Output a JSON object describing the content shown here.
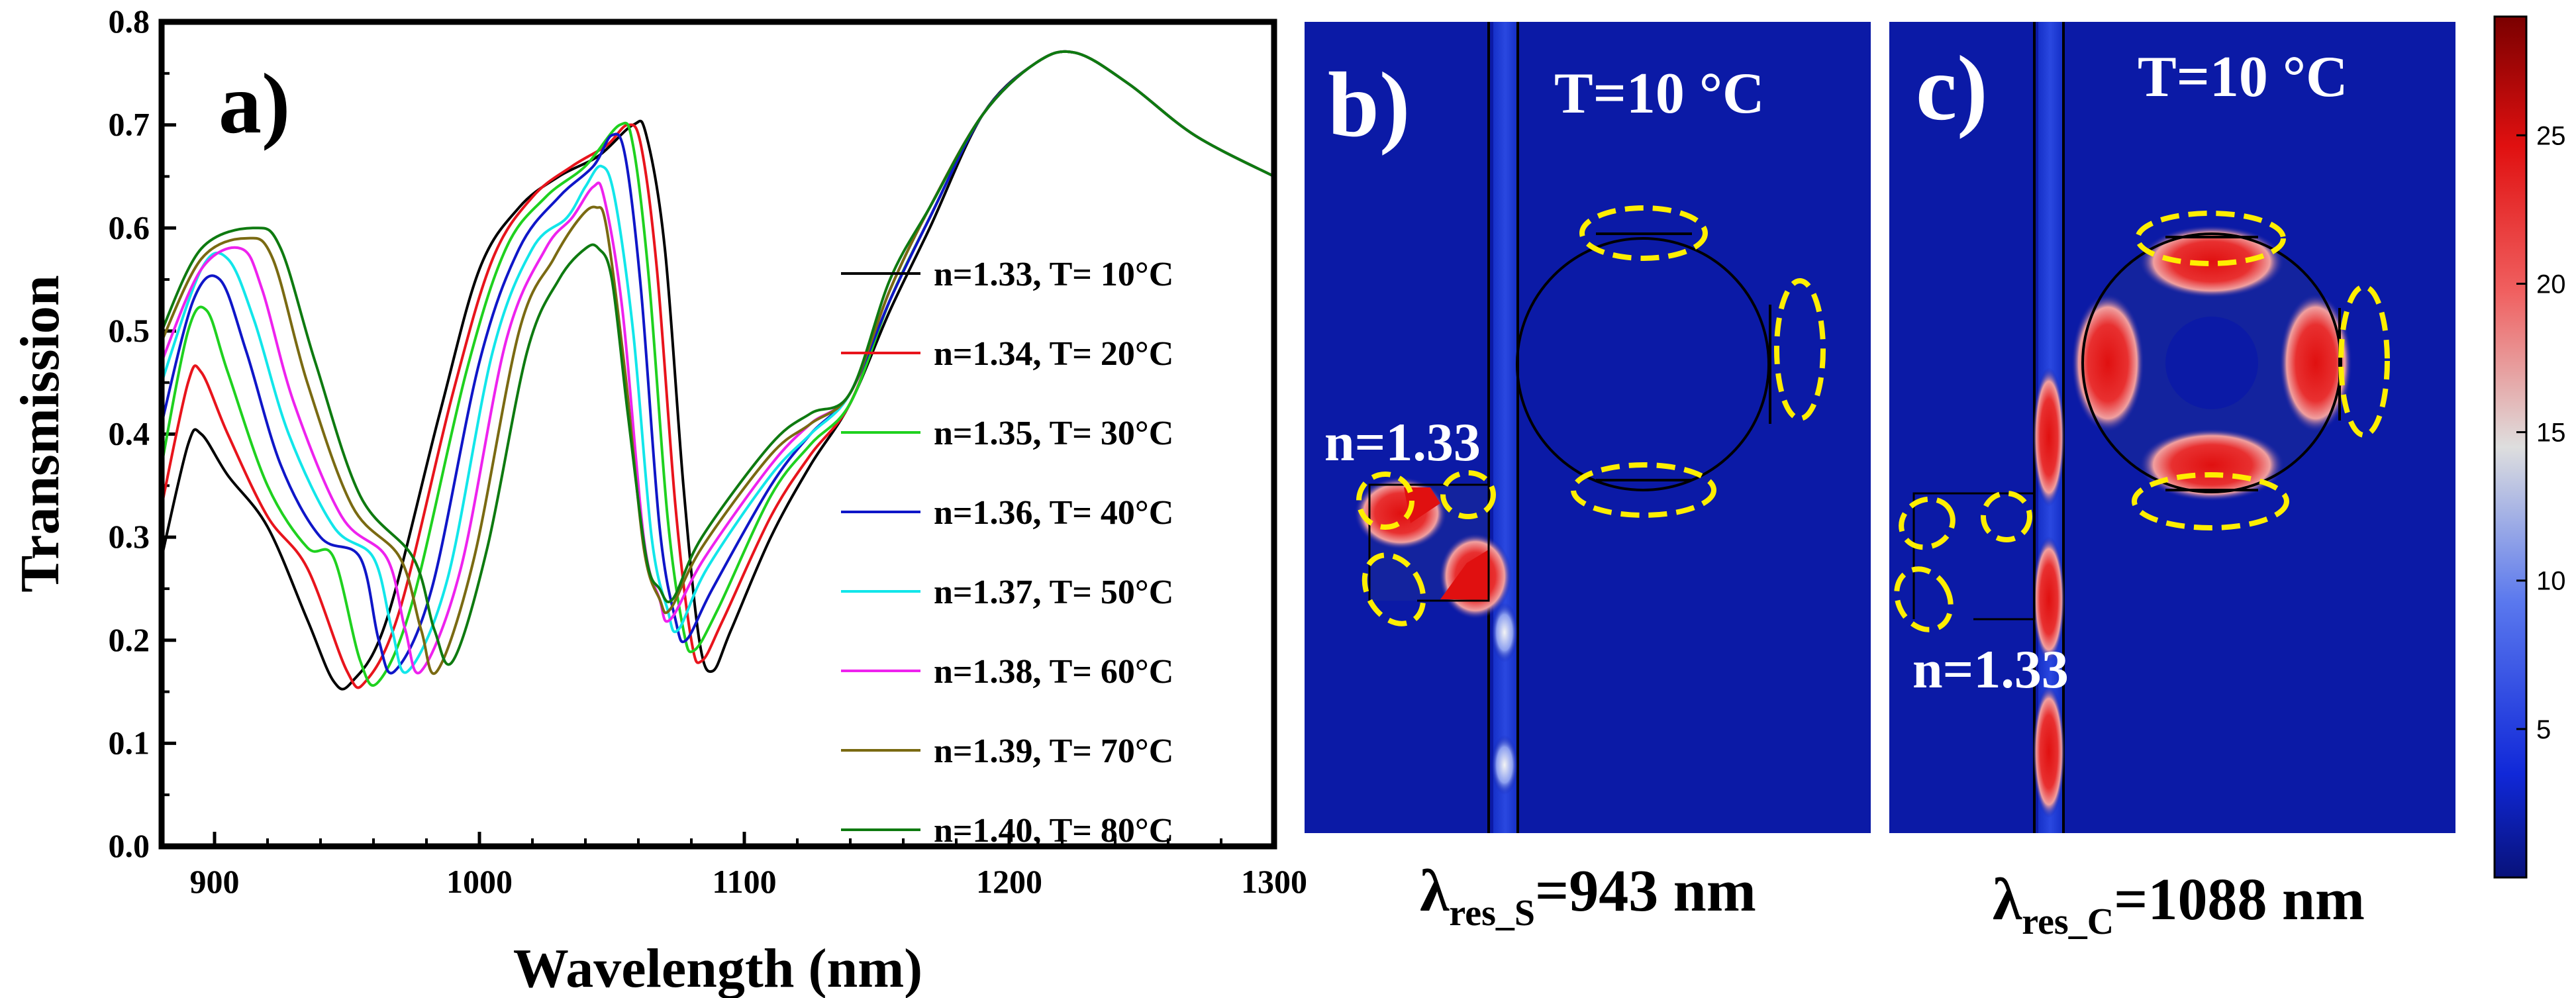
{
  "chart_data": [
    {
      "type": "line",
      "panel_label": "a)",
      "xlabel": "Wavelength (nm)",
      "ylabel": "Transmission",
      "xlim": [
        880,
        1300
      ],
      "ylim": [
        0.0,
        0.8
      ],
      "xticks": [
        "900",
        "1000",
        "1100",
        "1200",
        "1300"
      ],
      "yticks": [
        "0.0",
        "0.1",
        "0.2",
        "0.3",
        "0.4",
        "0.5",
        "0.6",
        "0.7",
        "0.8"
      ],
      "legend_position": "right",
      "series": [
        {
          "name": "n=1.33, T= 10°C",
          "color": "#000000",
          "points": [
            [
              880,
              0.28
            ],
            [
              890,
              0.39
            ],
            [
              895,
              0.4
            ],
            [
              905,
              0.36
            ],
            [
              920,
              0.31
            ],
            [
              935,
              0.22
            ],
            [
              945,
              0.16
            ],
            [
              952,
              0.16
            ],
            [
              965,
              0.22
            ],
            [
              985,
              0.42
            ],
            [
              1000,
              0.56
            ],
            [
              1015,
              0.62
            ],
            [
              1030,
              0.65
            ],
            [
              1045,
              0.67
            ],
            [
              1058,
              0.7
            ],
            [
              1063,
              0.69
            ],
            [
              1070,
              0.58
            ],
            [
              1077,
              0.35
            ],
            [
              1083,
              0.2
            ],
            [
              1088,
              0.17
            ],
            [
              1095,
              0.21
            ],
            [
              1110,
              0.3
            ],
            [
              1125,
              0.37
            ],
            [
              1140,
              0.43
            ],
            [
              1155,
              0.52
            ],
            [
              1170,
              0.6
            ],
            [
              1190,
              0.71
            ],
            [
              1210,
              0.76
            ],
            [
              1225,
              0.77
            ],
            [
              1245,
              0.74
            ],
            [
              1270,
              0.69
            ],
            [
              1300,
              0.65
            ]
          ]
        },
        {
          "name": "n=1.34, T= 20°C",
          "color": "#e8141c",
          "points": [
            [
              880,
              0.33
            ],
            [
              890,
              0.45
            ],
            [
              895,
              0.46
            ],
            [
              905,
              0.4
            ],
            [
              920,
              0.32
            ],
            [
              935,
              0.27
            ],
            [
              950,
              0.17
            ],
            [
              957,
              0.16
            ],
            [
              970,
              0.23
            ],
            [
              990,
              0.44
            ],
            [
              1005,
              0.57
            ],
            [
              1020,
              0.63
            ],
            [
              1035,
              0.66
            ],
            [
              1048,
              0.68
            ],
            [
              1056,
              0.7
            ],
            [
              1061,
              0.68
            ],
            [
              1067,
              0.56
            ],
            [
              1074,
              0.33
            ],
            [
              1080,
              0.2
            ],
            [
              1084,
              0.18
            ],
            [
              1092,
              0.22
            ],
            [
              1110,
              0.32
            ],
            [
              1125,
              0.38
            ],
            [
              1140,
              0.43
            ],
            [
              1155,
              0.53
            ],
            [
              1170,
              0.61
            ],
            [
              1190,
              0.71
            ],
            [
              1210,
              0.76
            ],
            [
              1225,
              0.77
            ],
            [
              1245,
              0.74
            ],
            [
              1270,
              0.69
            ],
            [
              1300,
              0.65
            ]
          ]
        },
        {
          "name": "n=1.35, T= 30°C",
          "color": "#1fd11f",
          "points": [
            [
              880,
              0.37
            ],
            [
              890,
              0.5
            ],
            [
              897,
              0.52
            ],
            [
              905,
              0.46
            ],
            [
              920,
              0.35
            ],
            [
              935,
              0.29
            ],
            [
              945,
              0.28
            ],
            [
              955,
              0.18
            ],
            [
              962,
              0.16
            ],
            [
              975,
              0.24
            ],
            [
              995,
              0.46
            ],
            [
              1010,
              0.58
            ],
            [
              1025,
              0.63
            ],
            [
              1040,
              0.66
            ],
            [
              1053,
              0.7
            ],
            [
              1058,
              0.68
            ],
            [
              1064,
              0.55
            ],
            [
              1071,
              0.32
            ],
            [
              1077,
              0.21
            ],
            [
              1081,
              0.19
            ],
            [
              1090,
              0.23
            ],
            [
              1110,
              0.34
            ],
            [
              1125,
              0.39
            ],
            [
              1140,
              0.43
            ],
            [
              1155,
              0.53
            ],
            [
              1170,
              0.61
            ],
            [
              1190,
              0.71
            ],
            [
              1210,
              0.76
            ],
            [
              1225,
              0.77
            ],
            [
              1245,
              0.74
            ],
            [
              1270,
              0.69
            ],
            [
              1300,
              0.65
            ]
          ]
        },
        {
          "name": "n=1.36, T= 40°C",
          "color": "#0f16c8",
          "points": [
            [
              880,
              0.41
            ],
            [
              892,
              0.53
            ],
            [
              902,
              0.55
            ],
            [
              912,
              0.48
            ],
            [
              925,
              0.37
            ],
            [
              940,
              0.3
            ],
            [
              955,
              0.28
            ],
            [
              962,
              0.2
            ],
            [
              968,
              0.17
            ],
            [
              982,
              0.25
            ],
            [
              1000,
              0.47
            ],
            [
              1015,
              0.58
            ],
            [
              1030,
              0.63
            ],
            [
              1043,
              0.66
            ],
            [
              1050,
              0.69
            ],
            [
              1055,
              0.67
            ],
            [
              1061,
              0.54
            ],
            [
              1068,
              0.31
            ],
            [
              1074,
              0.22
            ],
            [
              1078,
              0.2
            ],
            [
              1088,
              0.25
            ],
            [
              1110,
              0.35
            ],
            [
              1125,
              0.4
            ],
            [
              1140,
              0.44
            ],
            [
              1155,
              0.53
            ],
            [
              1170,
              0.61
            ],
            [
              1190,
              0.71
            ],
            [
              1210,
              0.76
            ],
            [
              1225,
              0.77
            ],
            [
              1245,
              0.74
            ],
            [
              1270,
              0.69
            ],
            [
              1300,
              0.65
            ]
          ]
        },
        {
          "name": "n=1.37, T= 50°C",
          "color": "#12e6ea",
          "points": [
            [
              880,
              0.45
            ],
            [
              895,
              0.56
            ],
            [
              905,
              0.57
            ],
            [
              915,
              0.51
            ],
            [
              928,
              0.4
            ],
            [
              945,
              0.31
            ],
            [
              960,
              0.28
            ],
            [
              967,
              0.21
            ],
            [
              973,
              0.17
            ],
            [
              988,
              0.26
            ],
            [
              1005,
              0.48
            ],
            [
              1020,
              0.58
            ],
            [
              1033,
              0.61
            ],
            [
              1040,
              0.64
            ],
            [
              1046,
              0.66
            ],
            [
              1051,
              0.63
            ],
            [
              1058,
              0.5
            ],
            [
              1065,
              0.3
            ],
            [
              1071,
              0.23
            ],
            [
              1075,
              0.21
            ],
            [
              1086,
              0.27
            ],
            [
              1110,
              0.36
            ],
            [
              1125,
              0.4
            ],
            [
              1140,
              0.44
            ],
            [
              1155,
              0.54
            ],
            [
              1170,
              0.62
            ],
            [
              1190,
              0.71
            ],
            [
              1210,
              0.76
            ],
            [
              1225,
              0.77
            ],
            [
              1245,
              0.74
            ],
            [
              1270,
              0.69
            ],
            [
              1300,
              0.65
            ]
          ]
        },
        {
          "name": "n=1.38, T= 60°C",
          "color": "#ee22ee",
          "points": [
            [
              880,
              0.47
            ],
            [
              895,
              0.56
            ],
            [
              910,
              0.58
            ],
            [
              918,
              0.54
            ],
            [
              930,
              0.43
            ],
            [
              948,
              0.32
            ],
            [
              965,
              0.28
            ],
            [
              972,
              0.21
            ],
            [
              978,
              0.17
            ],
            [
              993,
              0.27
            ],
            [
              1010,
              0.49
            ],
            [
              1025,
              0.58
            ],
            [
              1035,
              0.61
            ],
            [
              1043,
              0.64
            ],
            [
              1047,
              0.63
            ],
            [
              1054,
              0.52
            ],
            [
              1062,
              0.3
            ],
            [
              1068,
              0.24
            ],
            [
              1072,
              0.22
            ],
            [
              1085,
              0.28
            ],
            [
              1110,
              0.37
            ],
            [
              1125,
              0.41
            ],
            [
              1140,
              0.44
            ],
            [
              1155,
              0.54
            ],
            [
              1170,
              0.62
            ],
            [
              1190,
              0.71
            ],
            [
              1210,
              0.76
            ],
            [
              1225,
              0.77
            ],
            [
              1245,
              0.74
            ],
            [
              1270,
              0.69
            ],
            [
              1300,
              0.65
            ]
          ]
        },
        {
          "name": "n=1.39, T= 70°C",
          "color": "#7a6a12",
          "points": [
            [
              880,
              0.49
            ],
            [
              895,
              0.57
            ],
            [
              912,
              0.59
            ],
            [
              922,
              0.57
            ],
            [
              935,
              0.45
            ],
            [
              952,
              0.33
            ],
            [
              970,
              0.28
            ],
            [
              978,
              0.21
            ],
            [
              984,
              0.17
            ],
            [
              998,
              0.28
            ],
            [
              1015,
              0.5
            ],
            [
              1028,
              0.57
            ],
            [
              1038,
              0.61
            ],
            [
              1044,
              0.62
            ],
            [
              1048,
              0.6
            ],
            [
              1055,
              0.46
            ],
            [
              1062,
              0.29
            ],
            [
              1068,
              0.24
            ],
            [
              1072,
              0.23
            ],
            [
              1084,
              0.29
            ],
            [
              1110,
              0.38
            ],
            [
              1125,
              0.41
            ],
            [
              1140,
              0.44
            ],
            [
              1155,
              0.54
            ],
            [
              1170,
              0.62
            ],
            [
              1190,
              0.71
            ],
            [
              1210,
              0.76
            ],
            [
              1225,
              0.77
            ],
            [
              1245,
              0.74
            ],
            [
              1270,
              0.69
            ],
            [
              1300,
              0.65
            ]
          ]
        },
        {
          "name": "n=1.40, T= 80°C",
          "color": "#0e7a10",
          "points": [
            [
              880,
              0.5
            ],
            [
              895,
              0.58
            ],
            [
              915,
              0.6
            ],
            [
              925,
              0.58
            ],
            [
              938,
              0.47
            ],
            [
              955,
              0.34
            ],
            [
              975,
              0.28
            ],
            [
              983,
              0.21
            ],
            [
              990,
              0.18
            ],
            [
              1003,
              0.29
            ],
            [
              1018,
              0.48
            ],
            [
              1030,
              0.55
            ],
            [
              1040,
              0.58
            ],
            [
              1045,
              0.58
            ],
            [
              1050,
              0.55
            ],
            [
              1056,
              0.42
            ],
            [
              1063,
              0.28
            ],
            [
              1068,
              0.25
            ],
            [
              1073,
              0.24
            ],
            [
              1084,
              0.3
            ],
            [
              1110,
              0.39
            ],
            [
              1125,
              0.42
            ],
            [
              1140,
              0.44
            ],
            [
              1155,
              0.55
            ],
            [
              1170,
              0.62
            ],
            [
              1190,
              0.71
            ],
            [
              1210,
              0.76
            ],
            [
              1225,
              0.77
            ],
            [
              1245,
              0.74
            ],
            [
              1270,
              0.69
            ],
            [
              1300,
              0.65
            ]
          ]
        }
      ]
    },
    {
      "type": "heatmap",
      "colorbar": {
        "ticks": [
          "5",
          "10",
          "15",
          "20",
          "25"
        ],
        "range": [
          0,
          29
        ]
      }
    }
  ],
  "panel_b": {
    "label": "b)",
    "temperature": "T=10 °C",
    "index_label": "n=1.33",
    "caption_prefix": "λ",
    "caption_sub": "res_S",
    "caption_value": "=943 nm"
  },
  "panel_c": {
    "label": "c)",
    "temperature": "T=10 °C",
    "index_label": "n=1.33",
    "caption_prefix": "λ",
    "caption_sub": "res_C",
    "caption_value": "=1088 nm"
  },
  "colors": {
    "field_bg": "#0b1aa6",
    "highlight": "#ffee00",
    "field_hot": "#e01010"
  }
}
